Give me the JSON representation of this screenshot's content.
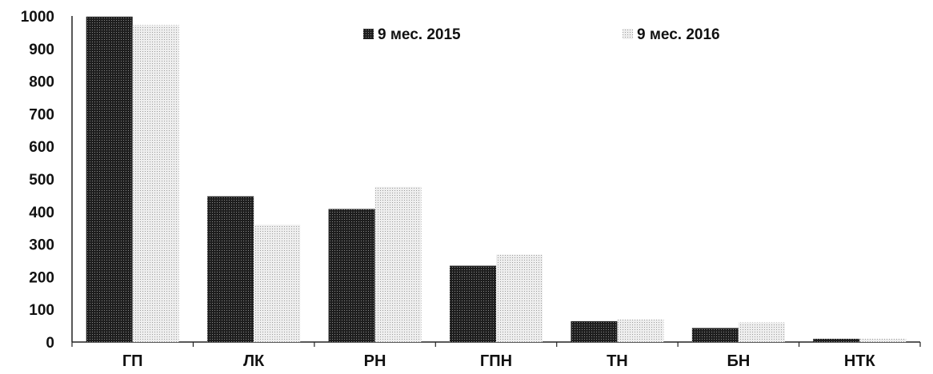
{
  "chart_data": {
    "type": "bar",
    "title": "",
    "xlabel": "",
    "ylabel": "",
    "ylim": [
      0,
      1000
    ],
    "yticks": [
      0,
      100,
      200,
      300,
      400,
      500,
      600,
      700,
      800,
      900,
      1000
    ],
    "grid": false,
    "legend_position": "top-center",
    "categories": [
      "ГП",
      "ЛК",
      "РН",
      "ГПН",
      "ТН",
      "БН",
      "НТК"
    ],
    "series": [
      {
        "name": "9 мес. 2015",
        "color": "#2b2b2b",
        "pattern": "dark-dotted",
        "values": [
          998,
          447,
          408,
          234,
          64,
          43,
          10
        ]
      },
      {
        "name": "9 мес. 2016",
        "color": "#d2d2d2",
        "pattern": "light-dotted",
        "values": [
          972,
          360,
          476,
          268,
          69,
          60,
          10
        ]
      }
    ]
  }
}
